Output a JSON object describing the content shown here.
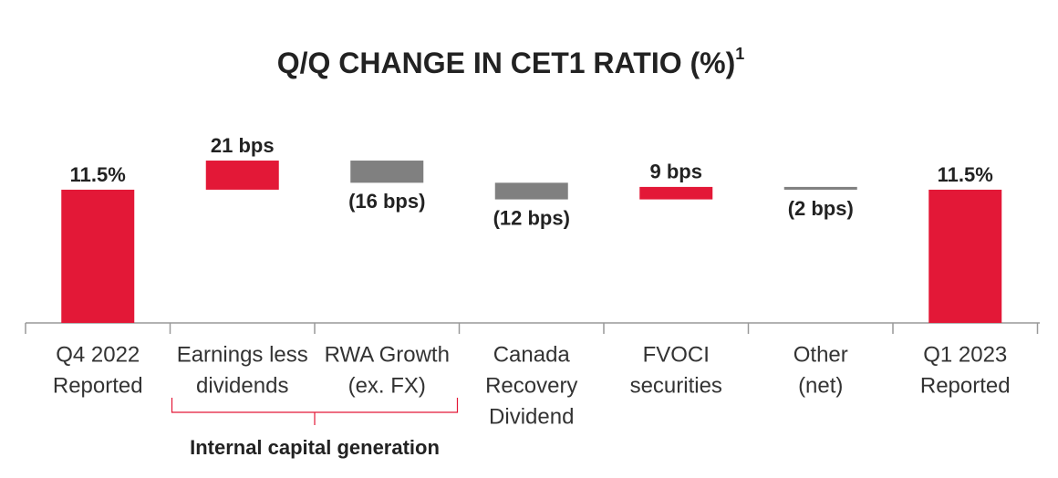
{
  "chart_data": {
    "type": "waterfall",
    "title": "Q/Q CHANGE IN CET1 RATIO (%)",
    "title_note": "1",
    "categories": [
      [
        "Q4 2022",
        "Reported"
      ],
      [
        "Earnings less",
        "dividends"
      ],
      [
        "RWA Growth",
        "(ex. FX)"
      ],
      [
        "Canada",
        "Recovery",
        "Dividend"
      ],
      [
        "FVOCI",
        "securities"
      ],
      [
        "Other",
        "(net)"
      ],
      [
        "Q1 2023",
        "Reported"
      ]
    ],
    "kinds": [
      "total",
      "delta",
      "delta",
      "delta",
      "delta",
      "delta",
      "total"
    ],
    "values": [
      11.5,
      21,
      -16,
      -12,
      9,
      -2,
      11.5
    ],
    "value_labels": [
      "11.5%",
      "21 bps",
      "(16 bps)",
      "(12 bps)",
      "9 bps",
      "(2 bps)",
      "11.5%"
    ],
    "colors": [
      "#e31837",
      "#e31837",
      "#808080",
      "#808080",
      "#e31837",
      "#808080",
      "#e31837"
    ],
    "annotations": [
      {
        "text": "Internal capital generation",
        "from": 1,
        "to": 2
      }
    ]
  }
}
